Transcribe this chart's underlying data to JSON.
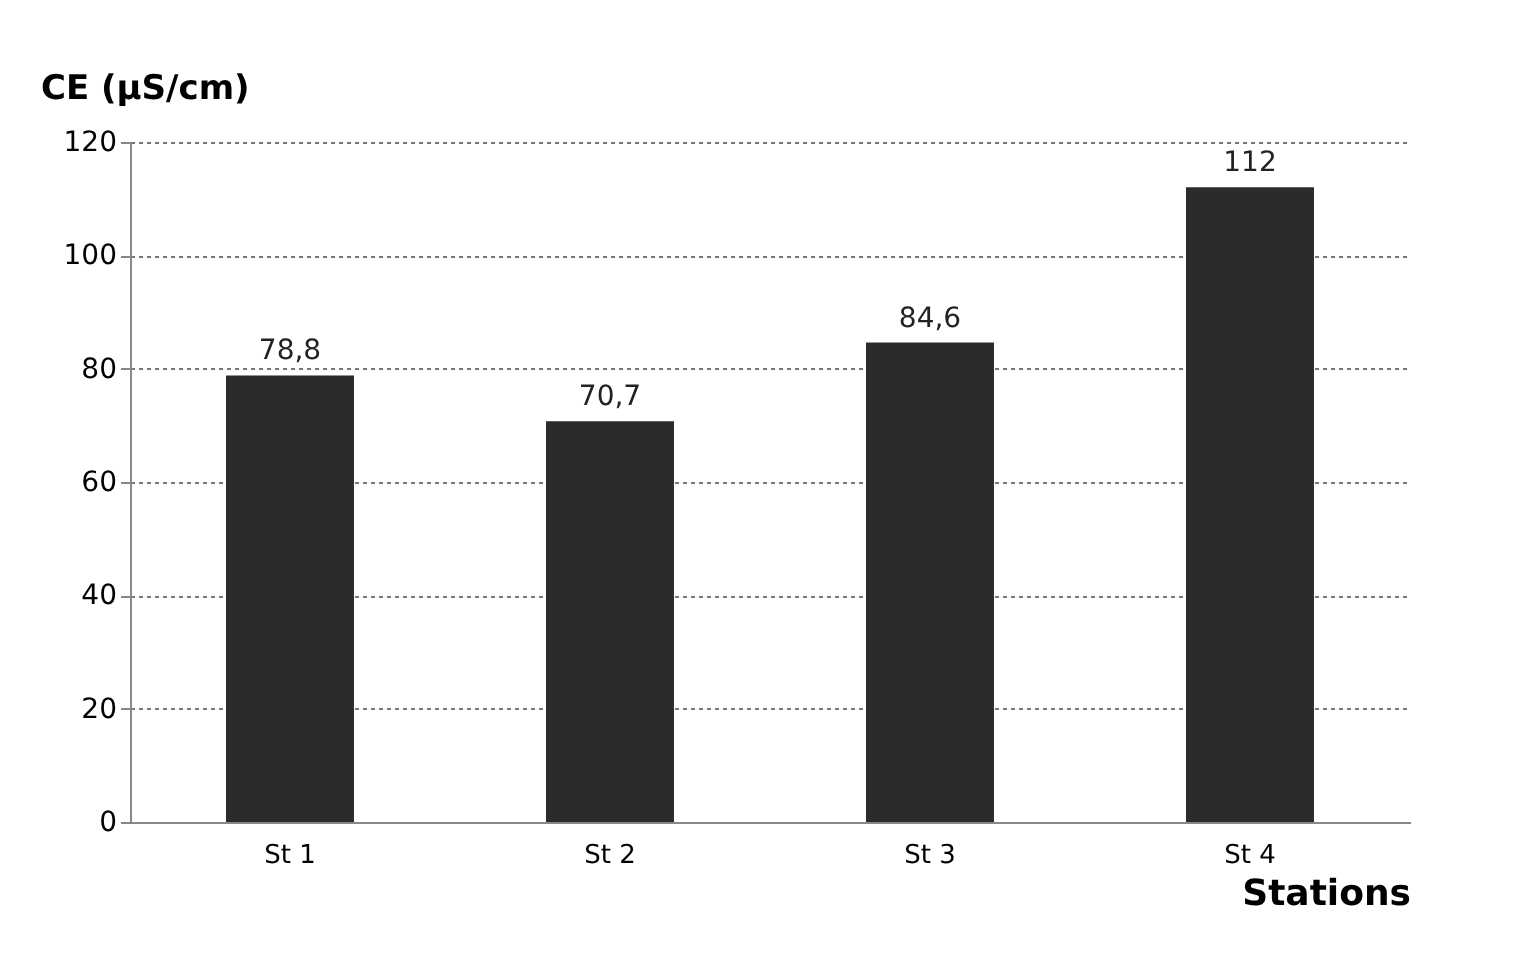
{
  "chart_data": {
    "type": "bar",
    "ylabel": "CE (µS/cm)",
    "xlabel": "Stations",
    "categories": [
      "St 1",
      "St 2",
      "St 3",
      "St 4"
    ],
    "values": [
      78.8,
      70.7,
      84.6,
      112
    ],
    "value_labels": [
      "78,8",
      "70,7",
      "84,6",
      "112"
    ],
    "color": "#2b2b2b",
    "ylim": [
      0,
      120
    ],
    "yticks": [
      0,
      20,
      40,
      60,
      80,
      100,
      120
    ],
    "grid": "y"
  }
}
